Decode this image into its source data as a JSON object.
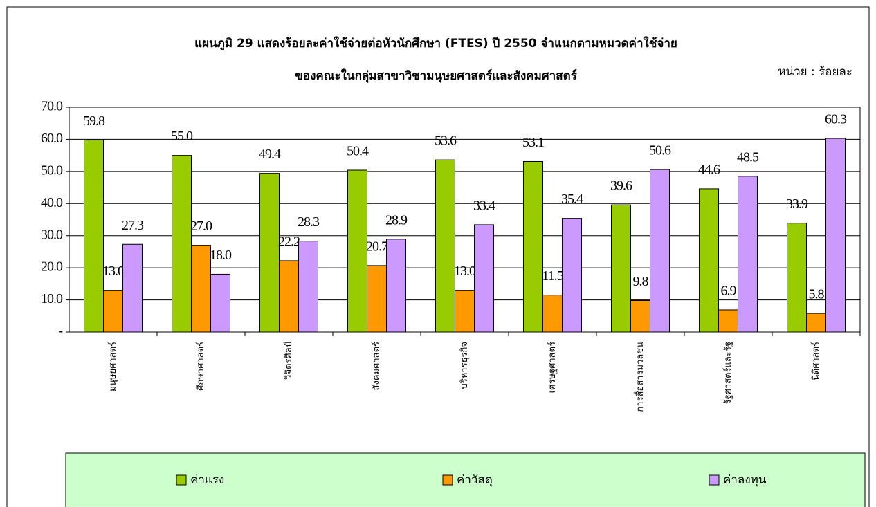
{
  "chart_data": {
    "type": "bar",
    "title": "แผนภูมิ 29 แสดงร้อยละค่าใช้จ่ายต่อหัวนักศึกษา (FTES) ปี 2550 จำแนกตามหมวดค่าใช้จ่าย",
    "subtitle": "ของคณะในกลุ่มสาขาวิชามนุษยศาสตร์และสังคมศาสตร์",
    "unit_label": "หน่วย : ร้อยละ",
    "categories": [
      "มนุษยศาสตร์",
      "ศึกษาศาสตร์",
      "วิจิตรศิลป์",
      "สังคมศาสตร์",
      "บริหารธุรกิจ",
      "เศรษฐศาสตร์",
      "การสื่อสารมวลชน",
      "รัฐศาสตร์และรัฐ",
      "นิติศาสตร์"
    ],
    "series": [
      {
        "name": "ค่าแรง",
        "color": "#99cc00",
        "values": [
          59.8,
          55.0,
          49.4,
          50.4,
          53.6,
          53.1,
          39.6,
          44.6,
          33.9
        ],
        "value_labels": [
          "59.8",
          "55.0",
          "49.4",
          "50.4",
          "53.6",
          "53.1",
          "39.6",
          "44.6",
          "33.9"
        ]
      },
      {
        "name": "ค่าวัสดุ",
        "color": "#ff9900",
        "values": [
          13.0,
          27.0,
          22.2,
          20.7,
          13.0,
          11.5,
          9.8,
          6.9,
          5.8
        ],
        "value_labels": [
          "13.0",
          "27.0",
          "22.2",
          "20.7",
          "13.0",
          "11.5",
          "9.8",
          "6.9",
          "5.8"
        ]
      },
      {
        "name": "ค่าลงทุน",
        "color": "#cc99ff",
        "values": [
          27.3,
          18.0,
          28.3,
          28.9,
          33.4,
          35.4,
          50.6,
          48.5,
          60.3
        ],
        "value_labels": [
          "27.3",
          "18.0",
          "28.3",
          "28.9",
          "33.4",
          "35.4",
          "50.6",
          "48.5",
          "60.3"
        ]
      }
    ],
    "ylim": [
      0,
      70
    ],
    "yticks": [
      {
        "value": 0,
        "label": "-"
      },
      {
        "value": 10,
        "label": "10.0"
      },
      {
        "value": 20,
        "label": "20.0"
      },
      {
        "value": 30,
        "label": "30.0"
      },
      {
        "value": 40,
        "label": "40.0"
      },
      {
        "value": 50,
        "label": "50.0"
      },
      {
        "value": 60,
        "label": "60.0"
      },
      {
        "value": 70,
        "label": "70.0"
      }
    ],
    "grid": true
  }
}
